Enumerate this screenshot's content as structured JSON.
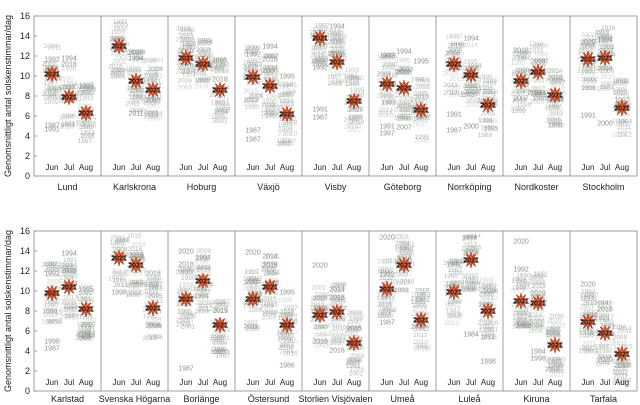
{
  "figure": {
    "ylabel": "Genomsnittligt antal solskenstimmar/dag",
    "months": [
      "Jun",
      "Jul",
      "Aug"
    ],
    "highlight_year": "2021",
    "colors": {
      "year_label": "#8a948a",
      "highlight_fill": "#e8643c",
      "highlight_stroke": "#b03010",
      "axis": "#888888",
      "text": "#222222"
    }
  },
  "chart_data": [
    {
      "type": "scatter",
      "title": "",
      "ylabel": "Genomsnittligt antal solskenstimmar/dag",
      "ylim": [
        0,
        16
      ],
      "yticks": [
        0,
        2,
        4,
        6,
        8,
        10,
        12,
        14,
        16
      ],
      "grid": false,
      "panels": [
        {
          "name": "Lund",
          "highlight": [
            10.2,
            7.9,
            6.3
          ],
          "labels": [
            {
              "m": 0,
              "y": 11.7,
              "t": "1992"
            },
            {
              "m": 1,
              "y": 11.8,
              "t": "1994"
            },
            {
              "m": 1,
              "y": 11.2,
              "t": "2018"
            },
            {
              "m": 0,
              "y": 5.1,
              "t": "1987"
            },
            {
              "m": 0,
              "y": 4.7,
              "t": "1991"
            },
            {
              "m": 2,
              "y": 9.0,
              "t": "1995"
            }
          ]
        },
        {
          "name": "Karlskrona",
          "highlight": [
            13.0,
            9.5,
            8.6
          ],
          "labels": [
            {
              "m": 1,
              "y": 12.4,
              "t": "2018"
            },
            {
              "m": 1,
              "y": 11.8,
              "t": "1994"
            },
            {
              "m": 1,
              "y": 6.3,
              "t": "2011"
            },
            {
              "m": 2,
              "y": 7.6,
              "t": "2015"
            }
          ]
        },
        {
          "name": "Hoburg",
          "highlight": [
            11.8,
            11.2,
            8.6
          ],
          "labels": [
            {
              "m": 0,
              "y": 12.5,
              "t": "2019"
            },
            {
              "m": 1,
              "y": 11.8,
              "t": "2018"
            },
            {
              "m": 0,
              "y": 11.0,
              "t": "2018"
            },
            {
              "m": 2,
              "y": 9.7,
              "t": "2018"
            }
          ]
        },
        {
          "name": "Växjö",
          "highlight": [
            9.9,
            9.0,
            6.2
          ],
          "labels": [
            {
              "m": 1,
              "y": 13.0,
              "t": "1994"
            },
            {
              "m": 0,
              "y": 12.2,
              "t": "1992"
            },
            {
              "m": 1,
              "y": 11.7,
              "t": "2018"
            },
            {
              "m": 1,
              "y": 10.6,
              "t": "2006"
            },
            {
              "m": 2,
              "y": 10.0,
              "t": "1995"
            },
            {
              "m": 0,
              "y": 4.6,
              "t": "1987"
            },
            {
              "m": 0,
              "y": 3.7,
              "t": "1987"
            }
          ]
        },
        {
          "name": "Visby",
          "highlight": [
            13.8,
            11.4,
            7.5
          ],
          "labels": [
            {
              "m": 1,
              "y": 15.0,
              "t": "1994"
            },
            {
              "m": 0,
              "y": 10.9,
              "t": "1992"
            },
            {
              "m": 1,
              "y": 12.2,
              "t": "2018"
            },
            {
              "m": 0,
              "y": 6.7,
              "t": "1991"
            },
            {
              "m": 0,
              "y": 5.9,
              "t": "1987"
            }
          ]
        },
        {
          "name": "Göteborg",
          "highlight": [
            9.2,
            8.8,
            6.6
          ],
          "labels": [
            {
              "m": 0,
              "y": 12.1,
              "t": "1992"
            },
            {
              "m": 1,
              "y": 12.5,
              "t": "1994"
            },
            {
              "m": 1,
              "y": 10.4,
              "t": "2018"
            },
            {
              "m": 2,
              "y": 11.5,
              "t": "1995"
            },
            {
              "m": 0,
              "y": 5.0,
              "t": "1991"
            },
            {
              "m": 0,
              "y": 4.3,
              "t": "1987"
            },
            {
              "m": 1,
              "y": 4.9,
              "t": "2007"
            }
          ]
        },
        {
          "name": "Norrköping",
          "highlight": [
            11.2,
            10.1,
            7.1
          ],
          "labels": [
            {
              "m": 1,
              "y": 13.8,
              "t": "1994"
            },
            {
              "m": 0,
              "y": 11.6,
              "t": "1992"
            },
            {
              "m": 0,
              "y": 6.2,
              "t": "1991"
            },
            {
              "m": 0,
              "y": 4.6,
              "t": "1987"
            },
            {
              "m": 1,
              "y": 5.0,
              "t": "2000"
            }
          ]
        },
        {
          "name": "Nordkoster",
          "highlight": [
            9.5,
            10.4,
            8.1
          ],
          "labels": [
            {
              "m": 0,
              "y": 12.6,
              "t": "2018"
            },
            {
              "m": 1,
              "y": 11.5,
              "t": "2018"
            },
            {
              "m": 1,
              "y": 8.3,
              "t": "1994"
            },
            {
              "m": 0,
              "y": 7.8,
              "t": "2007"
            },
            {
              "m": 2,
              "y": 9.9,
              "t": "2018"
            },
            {
              "m": 2,
              "y": 7.8,
              "t": "2010"
            }
          ]
        },
        {
          "name": "Stockholm",
          "highlight": [
            11.7,
            11.8,
            6.8
          ],
          "labels": [
            {
              "m": 0,
              "y": 13.4,
              "t": "2020"
            },
            {
              "m": 1,
              "y": 13.7,
              "t": "1994"
            },
            {
              "m": 1,
              "y": 12.4,
              "t": "2018"
            },
            {
              "m": 0,
              "y": 6.1,
              "t": "1991"
            },
            {
              "m": 1,
              "y": 5.3,
              "t": "2000"
            },
            {
              "m": 2,
              "y": 7.6,
              "t": "1997"
            }
          ]
        }
      ]
    },
    {
      "type": "scatter",
      "title": "",
      "ylabel": "Genomsnittligt antal solskenstimmar/dag",
      "ylim": [
        0,
        16
      ],
      "yticks": [
        0,
        2,
        4,
        6,
        8,
        10,
        12,
        14,
        16
      ],
      "grid": false,
      "panels": [
        {
          "name": "Karlstad",
          "highlight": [
            9.8,
            10.4,
            8.2
          ],
          "labels": [
            {
              "m": 1,
              "y": 13.8,
              "t": "1994"
            },
            {
              "m": 0,
              "y": 11.8,
              "t": "1992"
            },
            {
              "m": 1,
              "y": 12.1,
              "t": "2018"
            },
            {
              "m": 2,
              "y": 10.2,
              "t": "1995"
            },
            {
              "m": 0,
              "y": 5.0,
              "t": "1998"
            },
            {
              "m": 0,
              "y": 4.3,
              "t": "1987"
            }
          ]
        },
        {
          "name": "Svenska Högarna",
          "highlight": [
            13.3,
            12.6,
            8.3
          ],
          "labels": [
            {
              "m": 1,
              "y": 13.6,
              "t": "2018"
            },
            {
              "m": 2,
              "y": 11.8,
              "t": "2018"
            },
            {
              "m": 2,
              "y": 6.6,
              "t": "2008"
            },
            {
              "m": 0,
              "y": 9.9,
              "t": "1998"
            }
          ]
        },
        {
          "name": "Borlänge",
          "highlight": [
            9.2,
            11.0,
            6.6
          ],
          "labels": [
            {
              "m": 0,
              "y": 14.0,
              "t": "2020"
            },
            {
              "m": 1,
              "y": 13.4,
              "t": "1994"
            },
            {
              "m": 0,
              "y": 12.7,
              "t": "2018"
            },
            {
              "m": 0,
              "y": 2.3,
              "t": "1987"
            },
            {
              "m": 2,
              "y": 8.1,
              "t": "2019"
            }
          ]
        },
        {
          "name": "Östersund",
          "highlight": [
            9.2,
            10.4,
            6.6
          ],
          "labels": [
            {
              "m": 0,
              "y": 13.9,
              "t": "2020"
            },
            {
              "m": 1,
              "y": 13.5,
              "t": "2014"
            },
            {
              "m": 1,
              "y": 12.6,
              "t": "2018"
            },
            {
              "m": 0,
              "y": 11.0,
              "t": "2005"
            },
            {
              "m": 2,
              "y": 9.9,
              "t": "1995"
            },
            {
              "m": 2,
              "y": 2.6,
              "t": "1986"
            }
          ]
        },
        {
          "name": "Storlien Visjövalen",
          "highlight": [
            7.6,
            7.9,
            4.8
          ],
          "labels": [
            {
              "m": 0,
              "y": 12.6,
              "t": "2020"
            },
            {
              "m": 1,
              "y": 10.2,
              "t": "2014"
            },
            {
              "m": 1,
              "y": 9.4,
              "t": "2018"
            },
            {
              "m": 2,
              "y": 6.3,
              "t": "2015"
            },
            {
              "m": 0,
              "y": 5.0,
              "t": "2018"
            },
            {
              "m": 1,
              "y": 4.1,
              "t": "2016"
            }
          ]
        },
        {
          "name": "Umeå",
          "highlight": [
            10.2,
            12.6,
            7.1
          ],
          "labels": [
            {
              "m": 0,
              "y": 15.4,
              "t": "2020"
            },
            {
              "m": 0,
              "y": 11.7,
              "t": "1992"
            },
            {
              "m": 1,
              "y": 13.2,
              "t": "2018"
            },
            {
              "m": 0,
              "y": 6.9,
              "t": "1987"
            }
          ]
        },
        {
          "name": "Luleå",
          "highlight": [
            9.9,
            13.1,
            8.0
          ],
          "labels": [
            {
              "m": 0,
              "y": 12.7,
              "t": "1992"
            },
            {
              "m": 1,
              "y": 13.8,
              "t": "2018"
            },
            {
              "m": 1,
              "y": 5.7,
              "t": "1984"
            },
            {
              "m": 2,
              "y": 3.0,
              "t": "1998"
            },
            {
              "m": 2,
              "y": 10.1,
              "t": "2019"
            }
          ]
        },
        {
          "name": "Kiruna",
          "highlight": [
            9.0,
            8.8,
            4.6
          ],
          "labels": [
            {
              "m": 0,
              "y": 15.0,
              "t": "2020"
            },
            {
              "m": 1,
              "y": 9.8,
              "t": "2018"
            },
            {
              "m": 0,
              "y": 12.2,
              "t": "1992"
            },
            {
              "m": 1,
              "y": 4.0,
              "t": "1984"
            },
            {
              "m": 1,
              "y": 3.3,
              "t": "1998"
            },
            {
              "m": 2,
              "y": 2.6,
              "t": "1998"
            }
          ]
        },
        {
          "name": "Tarfala",
          "highlight": [
            6.9,
            5.8,
            3.7
          ],
          "labels": [
            {
              "m": 0,
              "y": 10.7,
              "t": "2020"
            },
            {
              "m": 1,
              "y": 8.2,
              "t": "2018"
            },
            {
              "m": 0,
              "y": 7.4,
              "t": "2018"
            },
            {
              "m": 1,
              "y": 3.2,
              "t": "2020"
            },
            {
              "m": 2,
              "y": 2.6,
              "t": "2017"
            }
          ]
        }
      ]
    }
  ]
}
